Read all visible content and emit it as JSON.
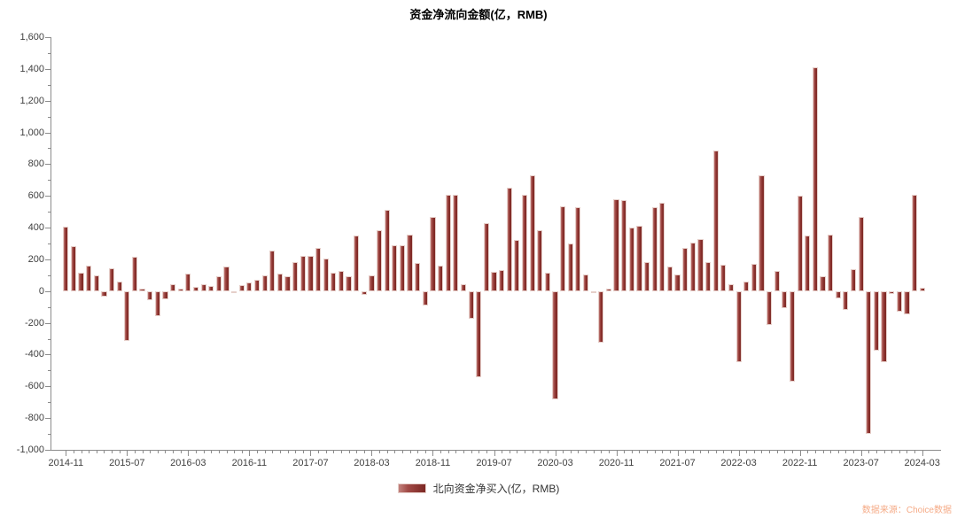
{
  "title": "资金净流向金额(亿，RMB)",
  "legend": {
    "label": "北向资金净买入(亿，RMB)"
  },
  "watermark": "数据来源：Choice数据",
  "colors": {
    "bar_dark": "#7c2824",
    "bar_mid": "#8e3834",
    "bar_light": "#c2817c",
    "axis": "#8c8c8c",
    "tick_label": "#404040",
    "title_text": "#000000",
    "watermark_text": "#f5ab87",
    "background": "#ffffff"
  },
  "chart_data": {
    "type": "bar",
    "title": "资金净流向金额(亿，RMB)",
    "xlabel": "",
    "ylabel": "",
    "grid": false,
    "legend_position": "bottom",
    "ylim": [
      -1000,
      1600
    ],
    "ytick_step": 200,
    "ytick_minor_step": 100,
    "ytick_labels": [
      "1,600",
      "1,400",
      "1,200",
      "1,000",
      "800",
      "600",
      "400",
      "200",
      "0",
      "-200",
      "-400",
      "-600",
      "-800",
      "-1,000"
    ],
    "xtick_labels": [
      "2014-11",
      "2015-07",
      "2016-03",
      "2016-11",
      "2017-07",
      "2018-03",
      "2018-11",
      "2019-07",
      "2020-03",
      "2020-11",
      "2021-07",
      "2022-03",
      "2022-11",
      "2023-07",
      "2024-03"
    ],
    "xtick_every": 8,
    "x": [
      "2014-11",
      "2014-12",
      "2015-01",
      "2015-02",
      "2015-03",
      "2015-04",
      "2015-05",
      "2015-06",
      "2015-07",
      "2015-08",
      "2015-09",
      "2015-10",
      "2015-11",
      "2015-12",
      "2016-01",
      "2016-02",
      "2016-03",
      "2016-04",
      "2016-05",
      "2016-06",
      "2016-07",
      "2016-08",
      "2016-09",
      "2016-10",
      "2016-11",
      "2016-12",
      "2017-01",
      "2017-02",
      "2017-03",
      "2017-04",
      "2017-05",
      "2017-06",
      "2017-07",
      "2017-08",
      "2017-09",
      "2017-10",
      "2017-11",
      "2017-12",
      "2018-01",
      "2018-02",
      "2018-03",
      "2018-04",
      "2018-05",
      "2018-06",
      "2018-07",
      "2018-08",
      "2018-09",
      "2018-10",
      "2018-11",
      "2018-12",
      "2019-01",
      "2019-02",
      "2019-03",
      "2019-04",
      "2019-05",
      "2019-06",
      "2019-07",
      "2019-08",
      "2019-09",
      "2019-10",
      "2019-11",
      "2019-12",
      "2020-01",
      "2020-02",
      "2020-03",
      "2020-04",
      "2020-05",
      "2020-06",
      "2020-07",
      "2020-08",
      "2020-09",
      "2020-10",
      "2020-11",
      "2020-12",
      "2021-01",
      "2021-02",
      "2021-03",
      "2021-04",
      "2021-05",
      "2021-06",
      "2021-07",
      "2021-08",
      "2021-09",
      "2021-10",
      "2021-11",
      "2021-12",
      "2022-01",
      "2022-02",
      "2022-03",
      "2022-04",
      "2022-05",
      "2022-06",
      "2022-07",
      "2022-08",
      "2022-09",
      "2022-10",
      "2022-11",
      "2022-12",
      "2023-01",
      "2023-02",
      "2023-03",
      "2023-04",
      "2023-05",
      "2023-06",
      "2023-07",
      "2023-08",
      "2023-09",
      "2023-10",
      "2023-11",
      "2023-12",
      "2024-01",
      "2024-02",
      "2024-03"
    ],
    "series": [
      {
        "name": "北向资金净买入(亿，RMB)",
        "values": [
          408,
          285,
          117,
          162,
          101,
          -34,
          144,
          60,
          -313,
          218,
          17,
          -58,
          -160,
          -50,
          46,
          17,
          110,
          26,
          41,
          32,
          91,
          153,
          -15,
          37,
          54,
          69,
          97,
          255,
          110,
          93,
          181,
          222,
          222,
          270,
          205,
          116,
          125,
          91,
          352,
          -26,
          97,
          386,
          513,
          289,
          287,
          354,
          175,
          -93,
          470,
          162,
          609,
          609,
          41,
          -173,
          -540,
          427,
          119,
          134,
          650,
          320,
          605,
          730,
          386,
          116,
          -680,
          535,
          302,
          529,
          102,
          -15,
          -326,
          18,
          581,
          572,
          401,
          414,
          184,
          529,
          557,
          153,
          102,
          270,
          306,
          330,
          184,
          885,
          166,
          41,
          -449,
          60,
          172,
          730,
          -211,
          129,
          -108,
          -573,
          604,
          348,
          1413,
          91,
          358,
          -46,
          -121,
          140,
          470,
          -897,
          -375,
          -448,
          -18,
          -129,
          -145,
          607,
          20
        ]
      }
    ]
  }
}
